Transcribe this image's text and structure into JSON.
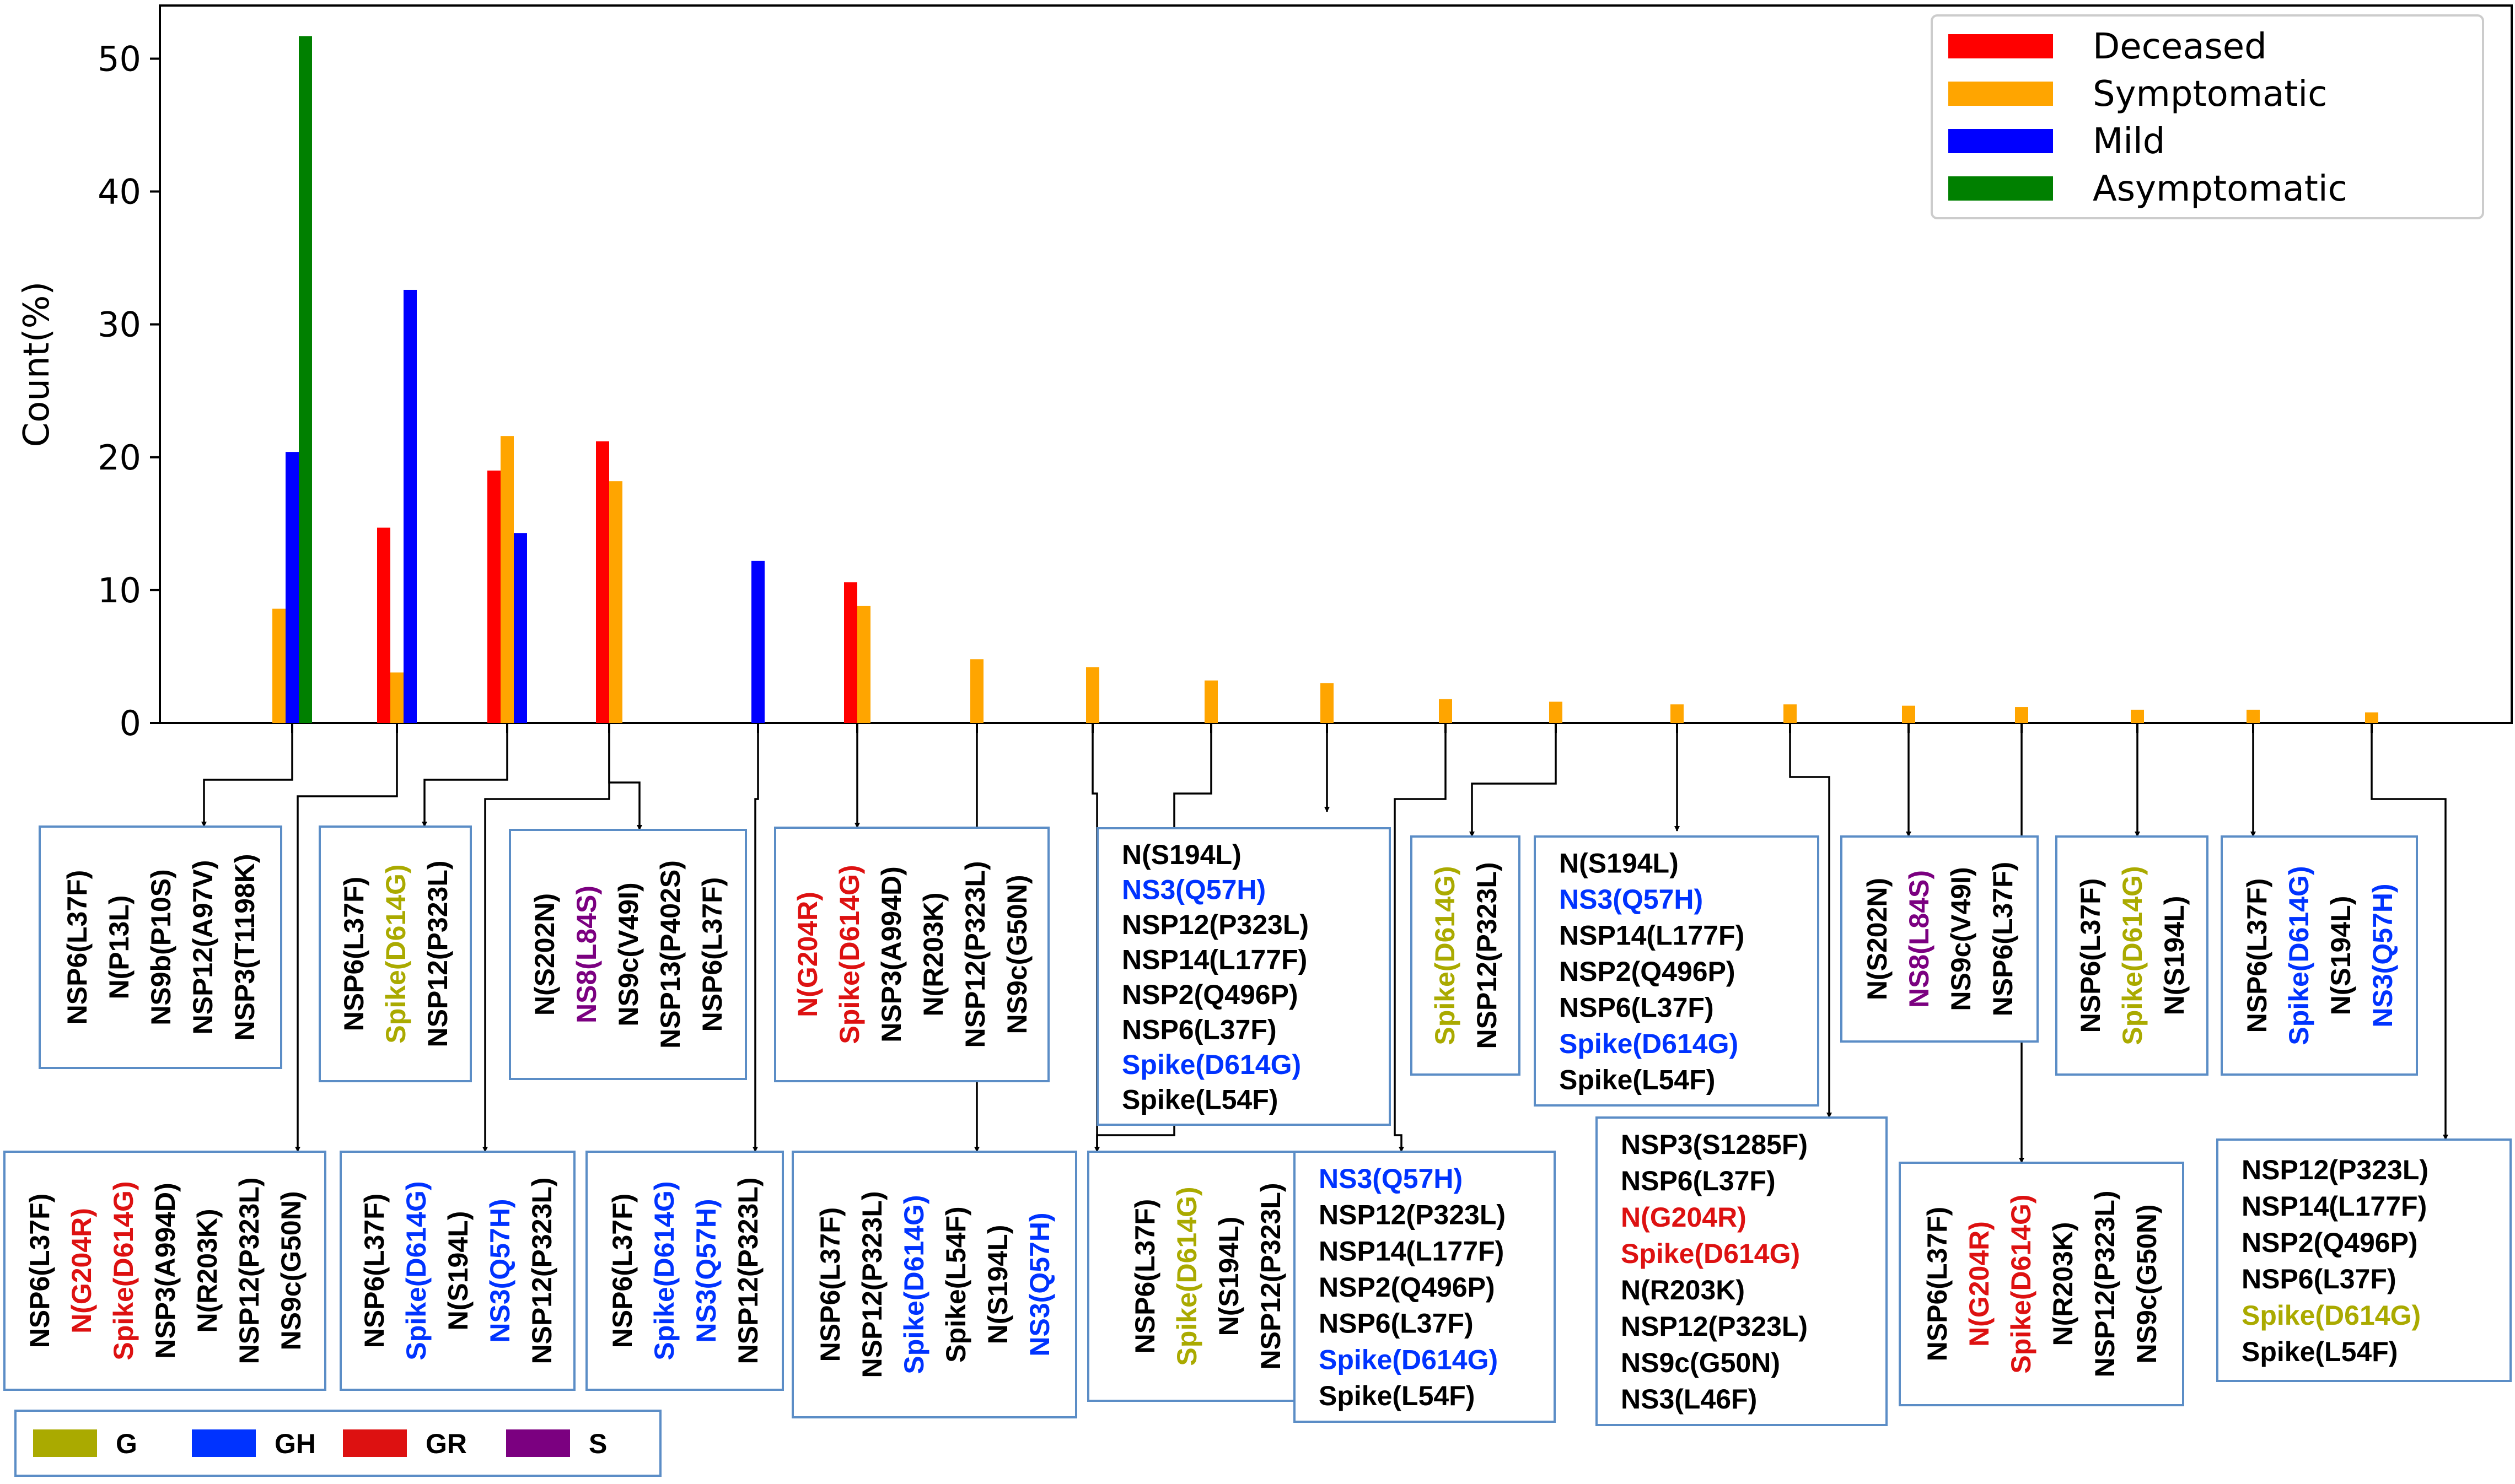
{
  "colors": {
    "deceased": "#ff0000",
    "symptomatic": "#ffa500",
    "mild": "#0000ff",
    "asymptomatic": "#008000",
    "clade_G": "#aaaa00",
    "clade_GH": "#0033ff",
    "clade_GR": "#dd1111",
    "clade_S": "#7b0080",
    "plain": "#000000",
    "box_border": "#5b8dc6"
  },
  "chart_data": {
    "type": "bar",
    "ylabel": "Count(%)",
    "xlabel": "",
    "ylim": [
      0,
      54
    ],
    "yticks": [
      0,
      10,
      20,
      30,
      40,
      50
    ],
    "grid": false,
    "legend_position": "top-right",
    "series": [
      {
        "name": "Deceased",
        "color_key": "deceased",
        "values": [
          0,
          14.7,
          19.0,
          21.2,
          0,
          10.6,
          0,
          0,
          0,
          0,
          0,
          0,
          0,
          0,
          0,
          0,
          0,
          0,
          0
        ]
      },
      {
        "name": "Symptomatic",
        "color_key": "symptomatic",
        "values": [
          8.6,
          3.8,
          21.6,
          18.2,
          0,
          8.8,
          4.8,
          4.2,
          3.2,
          3.0,
          1.8,
          1.6,
          1.4,
          1.4,
          1.3,
          1.2,
          1.0,
          1.0,
          0.8
        ]
      },
      {
        "name": "Mild",
        "color_key": "mild",
        "values": [
          20.4,
          32.6,
          14.3,
          0,
          12.2,
          0,
          0,
          0,
          0,
          0,
          0,
          0,
          0,
          0,
          0,
          0,
          0,
          0,
          0
        ]
      },
      {
        "name": "Asymptomatic",
        "color_key": "asymptomatic",
        "values": [
          51.7,
          0,
          0,
          0,
          0,
          0,
          0,
          0,
          0,
          0,
          0,
          0,
          0,
          0,
          0,
          0,
          0,
          0,
          0
        ]
      }
    ],
    "categories": [
      {
        "id": "c1",
        "rotated": true,
        "mutations": [
          {
            "t": "NSP6(L37F)",
            "c": "plain"
          },
          {
            "t": "N(P13L)",
            "c": "plain"
          },
          {
            "t": "NS9b(P10S)",
            "c": "plain"
          },
          {
            "t": "NSP12(A97V)",
            "c": "plain"
          },
          {
            "t": "NSP3(T1198K)",
            "c": "plain"
          }
        ]
      },
      {
        "id": "c2",
        "rotated": true,
        "mutations": [
          {
            "t": "NSP6(L37F)",
            "c": "plain"
          },
          {
            "t": "Spike(D614G)",
            "c": "clade_G"
          },
          {
            "t": "NSP12(P323L)",
            "c": "plain"
          }
        ]
      },
      {
        "id": "c3",
        "rotated": true,
        "mutations": [
          {
            "t": "NSP6(L37F)",
            "c": "plain"
          },
          {
            "t": "N(G204R)",
            "c": "clade_GR"
          },
          {
            "t": "Spike(D614G)",
            "c": "clade_GR"
          },
          {
            "t": "NSP3(A994D)",
            "c": "plain"
          },
          {
            "t": "N(R203K)",
            "c": "plain"
          },
          {
            "t": "NSP12(P323L)",
            "c": "plain"
          },
          {
            "t": "NS9c(G50N)",
            "c": "plain"
          }
        ]
      },
      {
        "id": "c4",
        "rotated": true,
        "mutations": [
          {
            "t": "NSP6(L37F)",
            "c": "plain"
          },
          {
            "t": "Spike(D614G)",
            "c": "clade_GH"
          },
          {
            "t": "N(S194L)",
            "c": "plain"
          },
          {
            "t": "NS3(Q57H)",
            "c": "clade_GH"
          },
          {
            "t": "NSP12(P323L)",
            "c": "plain"
          }
        ]
      },
      {
        "id": "c5",
        "rotated": true,
        "mutations": [
          {
            "t": "N(S202N)",
            "c": "plain"
          },
          {
            "t": "NS8(L84S)",
            "c": "clade_S"
          },
          {
            "t": "NS9c(V49I)",
            "c": "plain"
          },
          {
            "t": "NSP13(P402S)",
            "c": "plain"
          },
          {
            "t": "NSP6(L37F)",
            "c": "plain"
          }
        ]
      },
      {
        "id": "c6",
        "rotated": true,
        "mutations": [
          {
            "t": "NSP6(L37F)",
            "c": "plain"
          },
          {
            "t": "Spike(D614G)",
            "c": "clade_GH"
          },
          {
            "t": "NS3(Q57H)",
            "c": "clade_GH"
          },
          {
            "t": "NSP12(P323L)",
            "c": "plain"
          }
        ]
      },
      {
        "id": "c7",
        "rotated": true,
        "mutations": [
          {
            "t": "N(G204R)",
            "c": "clade_GR"
          },
          {
            "t": "Spike(D614G)",
            "c": "clade_GR"
          },
          {
            "t": "NSP3(A994D)",
            "c": "plain"
          },
          {
            "t": "N(R203K)",
            "c": "plain"
          },
          {
            "t": "NSP12(P323L)",
            "c": "plain"
          },
          {
            "t": "NS9c(G50N)",
            "c": "plain"
          }
        ]
      },
      {
        "id": "c8",
        "rotated": true,
        "mutations": [
          {
            "t": "NSP6(L37F)",
            "c": "plain"
          },
          {
            "t": "NSP12(P323L)",
            "c": "plain"
          },
          {
            "t": "Spike(D614G)",
            "c": "clade_GH"
          },
          {
            "t": "Spike(L54F)",
            "c": "plain"
          },
          {
            "t": "N(S194L)",
            "c": "plain"
          },
          {
            "t": "NS3(Q57H)",
            "c": "clade_GH"
          }
        ]
      },
      {
        "id": "c9",
        "rotated": true,
        "mutations": [
          {
            "t": "NSP6(L37F)",
            "c": "plain"
          },
          {
            "t": "Spike(D614G)",
            "c": "clade_G"
          },
          {
            "t": "N(S194L)",
            "c": "plain"
          },
          {
            "t": "NSP12(P323L)",
            "c": "plain"
          }
        ]
      },
      {
        "id": "c10",
        "rotated": false,
        "mutations": [
          {
            "t": "N(S194L)",
            "c": "plain"
          },
          {
            "t": "NS3(Q57H)",
            "c": "clade_GH"
          },
          {
            "t": "NSP12(P323L)",
            "c": "plain"
          },
          {
            "t": "NSP14(L177F)",
            "c": "plain"
          },
          {
            "t": "NSP2(Q496P)",
            "c": "plain"
          },
          {
            "t": "NSP6(L37F)",
            "c": "plain"
          },
          {
            "t": "Spike(D614G)",
            "c": "clade_GH"
          },
          {
            "t": "Spike(L54F)",
            "c": "plain"
          }
        ]
      },
      {
        "id": "c11",
        "rotated": false,
        "mutations": [
          {
            "t": "NS3(Q57H)",
            "c": "clade_GH"
          },
          {
            "t": "NSP12(P323L)",
            "c": "plain"
          },
          {
            "t": "NSP14(L177F)",
            "c": "plain"
          },
          {
            "t": "NSP2(Q496P)",
            "c": "plain"
          },
          {
            "t": "NSP6(L37F)",
            "c": "plain"
          },
          {
            "t": "Spike(D614G)",
            "c": "clade_GH"
          },
          {
            "t": "Spike(L54F)",
            "c": "plain"
          }
        ]
      },
      {
        "id": "c12",
        "rotated": true,
        "mutations": [
          {
            "t": "Spike(D614G)",
            "c": "clade_G"
          },
          {
            "t": "NSP12(P323L)",
            "c": "plain"
          }
        ]
      },
      {
        "id": "c13",
        "rotated": false,
        "mutations": [
          {
            "t": "N(S194L)",
            "c": "plain"
          },
          {
            "t": "NS3(Q57H)",
            "c": "clade_GH"
          },
          {
            "t": "NSP14(L177F)",
            "c": "plain"
          },
          {
            "t": "NSP2(Q496P)",
            "c": "plain"
          },
          {
            "t": "NSP6(L37F)",
            "c": "plain"
          },
          {
            "t": "Spike(D614G)",
            "c": "clade_GH"
          },
          {
            "t": "Spike(L54F)",
            "c": "plain"
          }
        ]
      },
      {
        "id": "c14",
        "rotated": false,
        "mutations": [
          {
            "t": "NSP3(S1285F)",
            "c": "plain"
          },
          {
            "t": "NSP6(L37F)",
            "c": "plain"
          },
          {
            "t": "N(G204R)",
            "c": "clade_GR"
          },
          {
            "t": "Spike(D614G)",
            "c": "clade_GR"
          },
          {
            "t": "N(R203K)",
            "c": "plain"
          },
          {
            "t": "NSP12(P323L)",
            "c": "plain"
          },
          {
            "t": "NS9c(G50N)",
            "c": "plain"
          },
          {
            "t": "NS3(L46F)",
            "c": "plain"
          }
        ]
      },
      {
        "id": "c15",
        "rotated": true,
        "mutations": [
          {
            "t": "N(S202N)",
            "c": "plain"
          },
          {
            "t": "NS8(L84S)",
            "c": "clade_S"
          },
          {
            "t": "NS9c(V49I)",
            "c": "plain"
          },
          {
            "t": "NSP6(L37F)",
            "c": "plain"
          }
        ]
      },
      {
        "id": "c16",
        "rotated": true,
        "mutations": [
          {
            "t": "NSP6(L37F)",
            "c": "plain"
          },
          {
            "t": "N(G204R)",
            "c": "clade_GR"
          },
          {
            "t": "Spike(D614G)",
            "c": "clade_GR"
          },
          {
            "t": "N(R203K)",
            "c": "plain"
          },
          {
            "t": "NSP12(P323L)",
            "c": "plain"
          },
          {
            "t": "NS9c(G50N)",
            "c": "plain"
          }
        ]
      },
      {
        "id": "c17",
        "rotated": true,
        "mutations": [
          {
            "t": "NSP6(L37F)",
            "c": "plain"
          },
          {
            "t": "Spike(D614G)",
            "c": "clade_G"
          },
          {
            "t": "N(S194L)",
            "c": "plain"
          }
        ]
      },
      {
        "id": "c18",
        "rotated": true,
        "mutations": [
          {
            "t": "NSP6(L37F)",
            "c": "plain"
          },
          {
            "t": "Spike(D614G)",
            "c": "clade_GH"
          },
          {
            "t": "N(S194L)",
            "c": "plain"
          },
          {
            "t": "NS3(Q57H)",
            "c": "clade_GH"
          }
        ]
      },
      {
        "id": "c19",
        "rotated": false,
        "mutations": [
          {
            "t": "NSP12(P323L)",
            "c": "plain"
          },
          {
            "t": "NSP14(L177F)",
            "c": "plain"
          },
          {
            "t": "NSP2(Q496P)",
            "c": "plain"
          },
          {
            "t": "NSP6(L37F)",
            "c": "plain"
          },
          {
            "t": "Spike(D614G)",
            "c": "clade_G"
          },
          {
            "t": "Spike(L54F)",
            "c": "plain"
          }
        ]
      }
    ],
    "clade_legend": [
      {
        "label": "G",
        "color_key": "clade_G"
      },
      {
        "label": "GH",
        "color_key": "clade_GH"
      },
      {
        "label": "GR",
        "color_key": "clade_GR"
      },
      {
        "label": "S",
        "color_key": "clade_S"
      }
    ]
  }
}
